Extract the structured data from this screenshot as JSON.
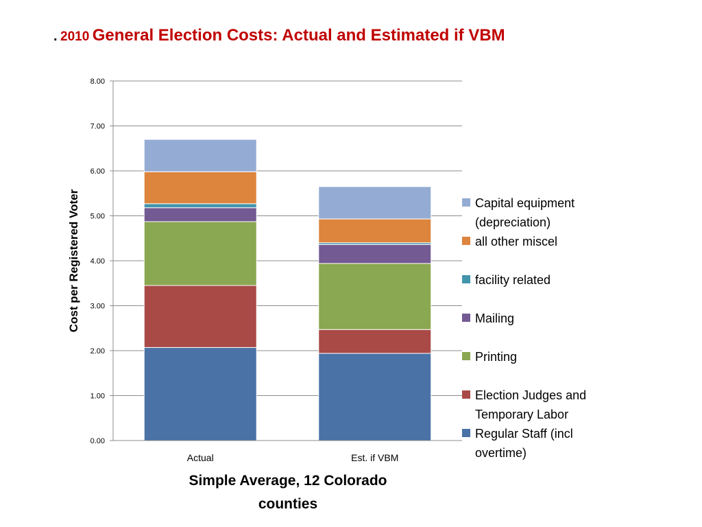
{
  "title": {
    "prefix": ".",
    "year": "2010",
    "main": "General Election Costs: Actual and Estimated if VBM"
  },
  "chart_data": {
    "type": "bar",
    "stacked": true,
    "categories": [
      "Actual",
      "Est. if VBM"
    ],
    "series": [
      {
        "name": "Regular Staff (incl overtime)",
        "color": "#4a72a6",
        "values": [
          2.07,
          1.94
        ]
      },
      {
        "name": "Election Judges and Temporary Labor",
        "color": "#a94a47",
        "values": [
          1.38,
          0.53
        ]
      },
      {
        "name": "Printing",
        "color": "#8aa751",
        "values": [
          1.42,
          1.47
        ]
      },
      {
        "name": "Mailing",
        "color": "#735a93",
        "values": [
          0.31,
          0.42
        ]
      },
      {
        "name": "facility related",
        "color": "#4395ab",
        "values": [
          0.09,
          0.04
        ]
      },
      {
        "name": "all other miscel",
        "color": "#dd843d",
        "values": [
          0.71,
          0.53
        ]
      },
      {
        "name": "Capital equipment (depreciation)",
        "color": "#94acd3",
        "values": [
          0.72,
          0.72
        ]
      }
    ],
    "ylim": [
      0,
      8
    ],
    "yticks": [
      "0.00",
      "1.00",
      "2.00",
      "3.00",
      "4.00",
      "5.00",
      "6.00",
      "7.00",
      "8.00"
    ],
    "ylabel": "Cost per Registered Voter",
    "xlabel": "Simple Average, 12 Colorado counties",
    "grid": true,
    "legend": "right"
  }
}
